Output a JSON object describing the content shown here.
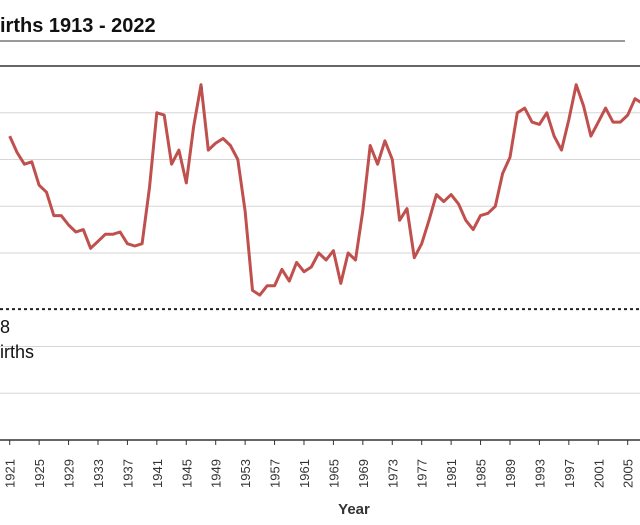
{
  "page": {
    "title": "irths 1913 - 2022"
  },
  "chart_data": {
    "type": "line",
    "title": "irths 1913 - 2022",
    "xlabel": "Year",
    "ylabel": "",
    "x_tick_labels": [
      "1921",
      "1925",
      "1929",
      "1933",
      "1937",
      "1941",
      "1945",
      "1949",
      "1953",
      "1957",
      "1961",
      "1965",
      "1969",
      "1973",
      "1977",
      "1981",
      "1985",
      "1989",
      "1993",
      "1997",
      "2001",
      "2005"
    ],
    "annotation": {
      "lines": [
        "8",
        "irths"
      ]
    },
    "reference_line": {
      "value": 2.8,
      "style": "dotted"
    },
    "ylim": [
      0,
      8
    ],
    "grid": true,
    "colors": {
      "series": "#c0504d",
      "grid": "#d6d6d6",
      "reference": "#222222"
    },
    "series": [
      {
        "name": "Births",
        "x": [
          1921,
          1922,
          1923,
          1924,
          1925,
          1926,
          1927,
          1928,
          1929,
          1930,
          1931,
          1932,
          1933,
          1934,
          1935,
          1936,
          1937,
          1938,
          1939,
          1940,
          1941,
          1942,
          1943,
          1944,
          1945,
          1946,
          1947,
          1948,
          1949,
          1950,
          1951,
          1952,
          1953,
          1954,
          1955,
          1956,
          1957,
          1958,
          1959,
          1960,
          1961,
          1962,
          1963,
          1964,
          1965,
          1966,
          1967,
          1968,
          1969,
          1970,
          1971,
          1972,
          1973,
          1974,
          1975,
          1976,
          1977,
          1978,
          1979,
          1980,
          1981,
          1982,
          1983,
          1984,
          1985,
          1986,
          1987,
          1988,
          1989,
          1990,
          1991,
          1992,
          1993,
          1994,
          1995,
          1996,
          1997,
          1998,
          1999,
          2000,
          2001,
          2002,
          2003,
          2004,
          2005,
          2006,
          2007
        ],
        "values": [
          6.5,
          6.15,
          5.9,
          5.95,
          5.45,
          5.3,
          4.8,
          4.8,
          4.6,
          4.45,
          4.5,
          4.1,
          4.25,
          4.4,
          4.4,
          4.45,
          4.2,
          4.15,
          4.2,
          5.4,
          7.0,
          6.95,
          5.9,
          6.2,
          5.5,
          6.7,
          7.6,
          6.2,
          6.35,
          6.45,
          6.3,
          6.0,
          4.9,
          3.2,
          3.1,
          3.3,
          3.3,
          3.65,
          3.4,
          3.8,
          3.6,
          3.7,
          4.0,
          3.85,
          4.05,
          3.35,
          4.0,
          3.85,
          4.9,
          6.3,
          5.9,
          6.4,
          6.0,
          4.7,
          4.95,
          3.9,
          4.2,
          4.7,
          5.25,
          5.1,
          5.25,
          5.05,
          4.7,
          4.5,
          4.8,
          4.85,
          5.0,
          5.7,
          6.05,
          7.0,
          7.1,
          6.8,
          6.75,
          7.0,
          6.5,
          6.2,
          6.85,
          7.6,
          7.15,
          6.5,
          6.8,
          7.1,
          6.8,
          6.8,
          6.95,
          7.3,
          7.2
        ]
      }
    ]
  }
}
